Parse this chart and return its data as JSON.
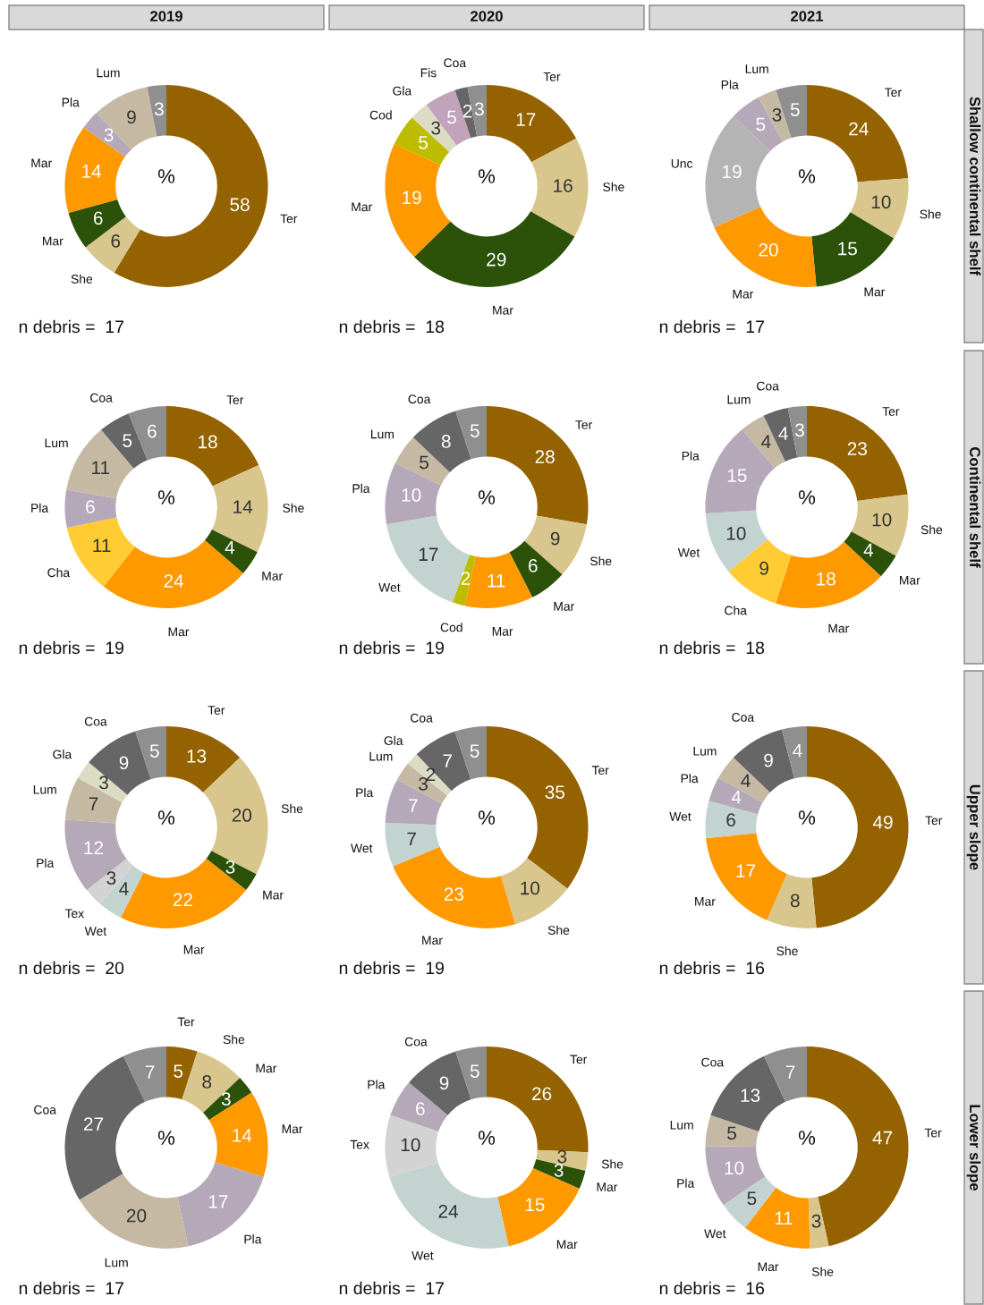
{
  "chart_data": [
    {
      "type": "donut",
      "title": "2019",
      "categories": [
        "Ter",
        "She",
        "Mar",
        "Mar",
        "Pla",
        "Lum",
        null
      ],
      "values": [
        58,
        6,
        6,
        14,
        3,
        9,
        3
      ],
      "colors": [
        "#946300",
        "#d8c68c",
        "#2b5208",
        "#ff9900",
        "#b5a8b8",
        "#c5b9a3",
        "#8f8f8f"
      ],
      "data_labels": true,
      "annotations": [
        "%",
        "n debris =  17"
      ]
    },
    {
      "type": "donut",
      "title": "2020",
      "categories": [
        "Ter",
        "She",
        "Mar",
        "Mar",
        "Cod",
        "Gla",
        "Fis",
        "Coa",
        null
      ],
      "values": [
        17,
        16,
        29,
        19,
        5,
        3,
        5,
        2,
        3
      ],
      "colors": [
        "#946300",
        "#d8c68c",
        "#2b5208",
        "#ff9900",
        "#bdbd00",
        "#dcdcc4",
        "#c2a3bc",
        "#666666",
        "#8f8f8f"
      ],
      "data_labels": true,
      "annotations": [
        "%",
        "n debris =  18"
      ]
    },
    {
      "type": "donut",
      "title": "2021",
      "y2label": "Shallow continental shelf",
      "categories": [
        "Ter",
        "She",
        "Mar",
        "Mar",
        "Unc",
        "Pla",
        "Lum",
        null
      ],
      "values": [
        24,
        10,
        15,
        20,
        19,
        5,
        3,
        5
      ],
      "colors": [
        "#946300",
        "#d8c68c",
        "#2b5208",
        "#ff9900",
        "#b4b4b4",
        "#b5a8b8",
        "#c5b9a3",
        "#8f8f8f"
      ],
      "data_labels": true,
      "annotations": [
        "%",
        "n debris =  17"
      ]
    },
    {
      "type": "donut",
      "categories": [
        "Ter",
        "She",
        "Mar",
        "Mar",
        "Cha",
        "Pla",
        "Lum",
        "Coa",
        null
      ],
      "values": [
        18,
        14,
        4,
        24,
        11,
        6,
        11,
        5,
        6
      ],
      "colors": [
        "#946300",
        "#d8c68c",
        "#2b5208",
        "#ff9900",
        "#ffcc33",
        "#b5a8b8",
        "#c5b9a3",
        "#666666",
        "#8f8f8f"
      ],
      "data_labels": true,
      "annotations": [
        "%",
        "n debris =  19"
      ]
    },
    {
      "type": "donut",
      "categories": [
        "Ter",
        "She",
        "Mar",
        "Mar",
        "Cod",
        "Wet",
        "Pla",
        "Lum",
        "Coa",
        null
      ],
      "values": [
        28,
        9,
        6,
        11,
        2,
        17,
        10,
        5,
        8,
        5
      ],
      "colors": [
        "#946300",
        "#d8c68c",
        "#2b5208",
        "#ff9900",
        "#bdbd00",
        "#c3d4d0",
        "#b5a8b8",
        "#c5b9a3",
        "#666666",
        "#8f8f8f"
      ],
      "data_labels": true,
      "annotations": [
        "%",
        "n debris =  19"
      ]
    },
    {
      "type": "donut",
      "y2label": "Continental shelf",
      "categories": [
        "Ter",
        "She",
        "Mar",
        "Mar",
        "Cha",
        "Wet",
        "Pla",
        "Lum",
        "Coa",
        null
      ],
      "values": [
        23,
        10,
        4,
        18,
        9,
        10,
        15,
        4,
        4,
        3
      ],
      "colors": [
        "#946300",
        "#d8c68c",
        "#2b5208",
        "#ff9900",
        "#ffcc33",
        "#c3d4d0",
        "#b5a8b8",
        "#c5b9a3",
        "#666666",
        "#8f8f8f"
      ],
      "data_labels": true,
      "annotations": [
        "%",
        "n debris =  18"
      ]
    },
    {
      "type": "donut",
      "categories": [
        "Ter",
        "She",
        "Mar",
        "Mar",
        "Wet",
        "Tex",
        "Pla",
        "Lum",
        "Gla",
        "Coa",
        null
      ],
      "values": [
        13,
        20,
        3,
        22,
        4,
        3,
        12,
        7,
        3,
        9,
        5
      ],
      "colors": [
        "#946300",
        "#d8c68c",
        "#2b5208",
        "#ff9900",
        "#c3d4d0",
        "#d3d3d3",
        "#b5a8b8",
        "#c5b9a3",
        "#dcdcc4",
        "#666666",
        "#8f8f8f"
      ],
      "data_labels": true,
      "annotations": [
        "%",
        "n debris =  20"
      ]
    },
    {
      "type": "donut",
      "categories": [
        "Ter",
        "She",
        "Mar",
        "Wet",
        "Pla",
        "Lum",
        "Gla",
        "Coa",
        null
      ],
      "values": [
        35,
        10,
        23,
        7,
        7,
        3,
        2,
        7,
        5
      ],
      "colors": [
        "#946300",
        "#d8c68c",
        "#ff9900",
        "#c3d4d0",
        "#b5a8b8",
        "#c5b9a3",
        "#dcdcc4",
        "#666666",
        "#8f8f8f"
      ],
      "data_labels": true,
      "annotations": [
        "%",
        "n debris =  19"
      ]
    },
    {
      "type": "donut",
      "y2label": "Upper slope",
      "categories": [
        "Ter",
        "She",
        "Mar",
        "Wet",
        "Pla",
        "Lum",
        "Coa",
        null
      ],
      "values": [
        49,
        8,
        17,
        6,
        4,
        4,
        9,
        4
      ],
      "colors": [
        "#946300",
        "#d8c68c",
        "#ff9900",
        "#c3d4d0",
        "#b5a8b8",
        "#c5b9a3",
        "#666666",
        "#8f8f8f"
      ],
      "data_labels": true,
      "annotations": [
        "%",
        "n debris =  16"
      ]
    },
    {
      "type": "donut",
      "categories": [
        "Ter",
        "She",
        "Mar",
        "Mar",
        "Pla",
        "Lum",
        "Coa",
        null
      ],
      "values": [
        5,
        8,
        3,
        14,
        17,
        20,
        27,
        7
      ],
      "colors": [
        "#946300",
        "#d8c68c",
        "#2b5208",
        "#ff9900",
        "#b5a8b8",
        "#c5b9a3",
        "#666666",
        "#8f8f8f"
      ],
      "data_labels": true,
      "annotations": [
        "%",
        "n debris =  17"
      ]
    },
    {
      "type": "donut",
      "categories": [
        "Ter",
        "She",
        "Mar",
        "Mar",
        "Wet",
        "Tex",
        "Pla",
        "Coa",
        null
      ],
      "values": [
        26,
        3,
        3,
        15,
        24,
        10,
        6,
        9,
        5
      ],
      "colors": [
        "#946300",
        "#d8c68c",
        "#2b5208",
        "#ff9900",
        "#c3d4d0",
        "#d3d3d3",
        "#b5a8b8",
        "#666666",
        "#8f8f8f"
      ],
      "data_labels": true,
      "annotations": [
        "%",
        "n debris =  17"
      ]
    },
    {
      "type": "donut",
      "y2label": "Lower slope",
      "categories": [
        "Ter",
        "She",
        "Mar",
        "Wet",
        "Pla",
        "Lum",
        "Coa",
        null
      ],
      "values": [
        47,
        3,
        11,
        5,
        10,
        5,
        13,
        7
      ],
      "colors": [
        "#946300",
        "#d8c68c",
        "#ff9900",
        "#c3d4d0",
        "#b5a8b8",
        "#c5b9a3",
        "#666666",
        "#8f8f8f"
      ],
      "data_labels": true,
      "annotations": [
        "%",
        "n debris =  16"
      ]
    }
  ]
}
